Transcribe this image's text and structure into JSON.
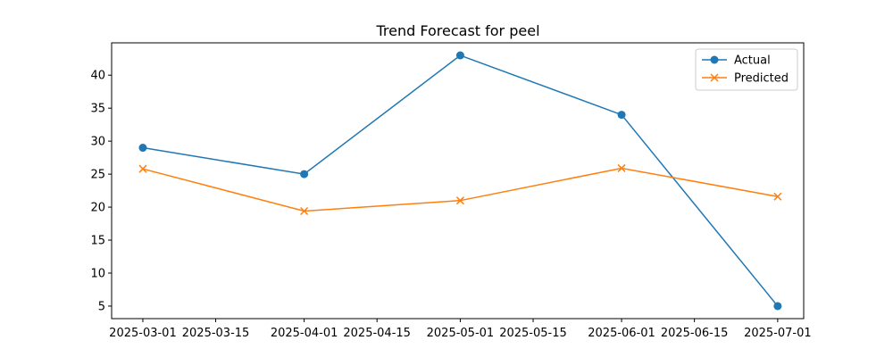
{
  "chart_data": {
    "type": "line",
    "title": "Trend Forecast for peel",
    "xlabel": "",
    "ylabel": "",
    "x_ticks": [
      "2025-03-01",
      "2025-03-15",
      "2025-04-01",
      "2025-04-15",
      "2025-05-01",
      "2025-05-15",
      "2025-06-01",
      "2025-06-15",
      "2025-07-01"
    ],
    "y_ticks": [
      5,
      10,
      15,
      20,
      25,
      30,
      35,
      40
    ],
    "ylim": [
      3.1,
      44.9
    ],
    "xlim": [
      "2025-02-23",
      "2025-07-06"
    ],
    "grid": false,
    "legend_position": "top-right",
    "series": [
      {
        "name": "Actual",
        "color": "#1f77b4",
        "marker": "circle",
        "x": [
          "2025-03-01",
          "2025-04-01",
          "2025-05-01",
          "2025-06-01",
          "2025-07-01"
        ],
        "values": [
          29,
          25,
          43,
          34,
          5
        ]
      },
      {
        "name": "Predicted",
        "color": "#ff7f0e",
        "marker": "x",
        "x": [
          "2025-03-01",
          "2025-04-01",
          "2025-05-01",
          "2025-06-01",
          "2025-07-01"
        ],
        "values": [
          25.8,
          19.4,
          21.0,
          25.9,
          21.6
        ]
      }
    ]
  }
}
